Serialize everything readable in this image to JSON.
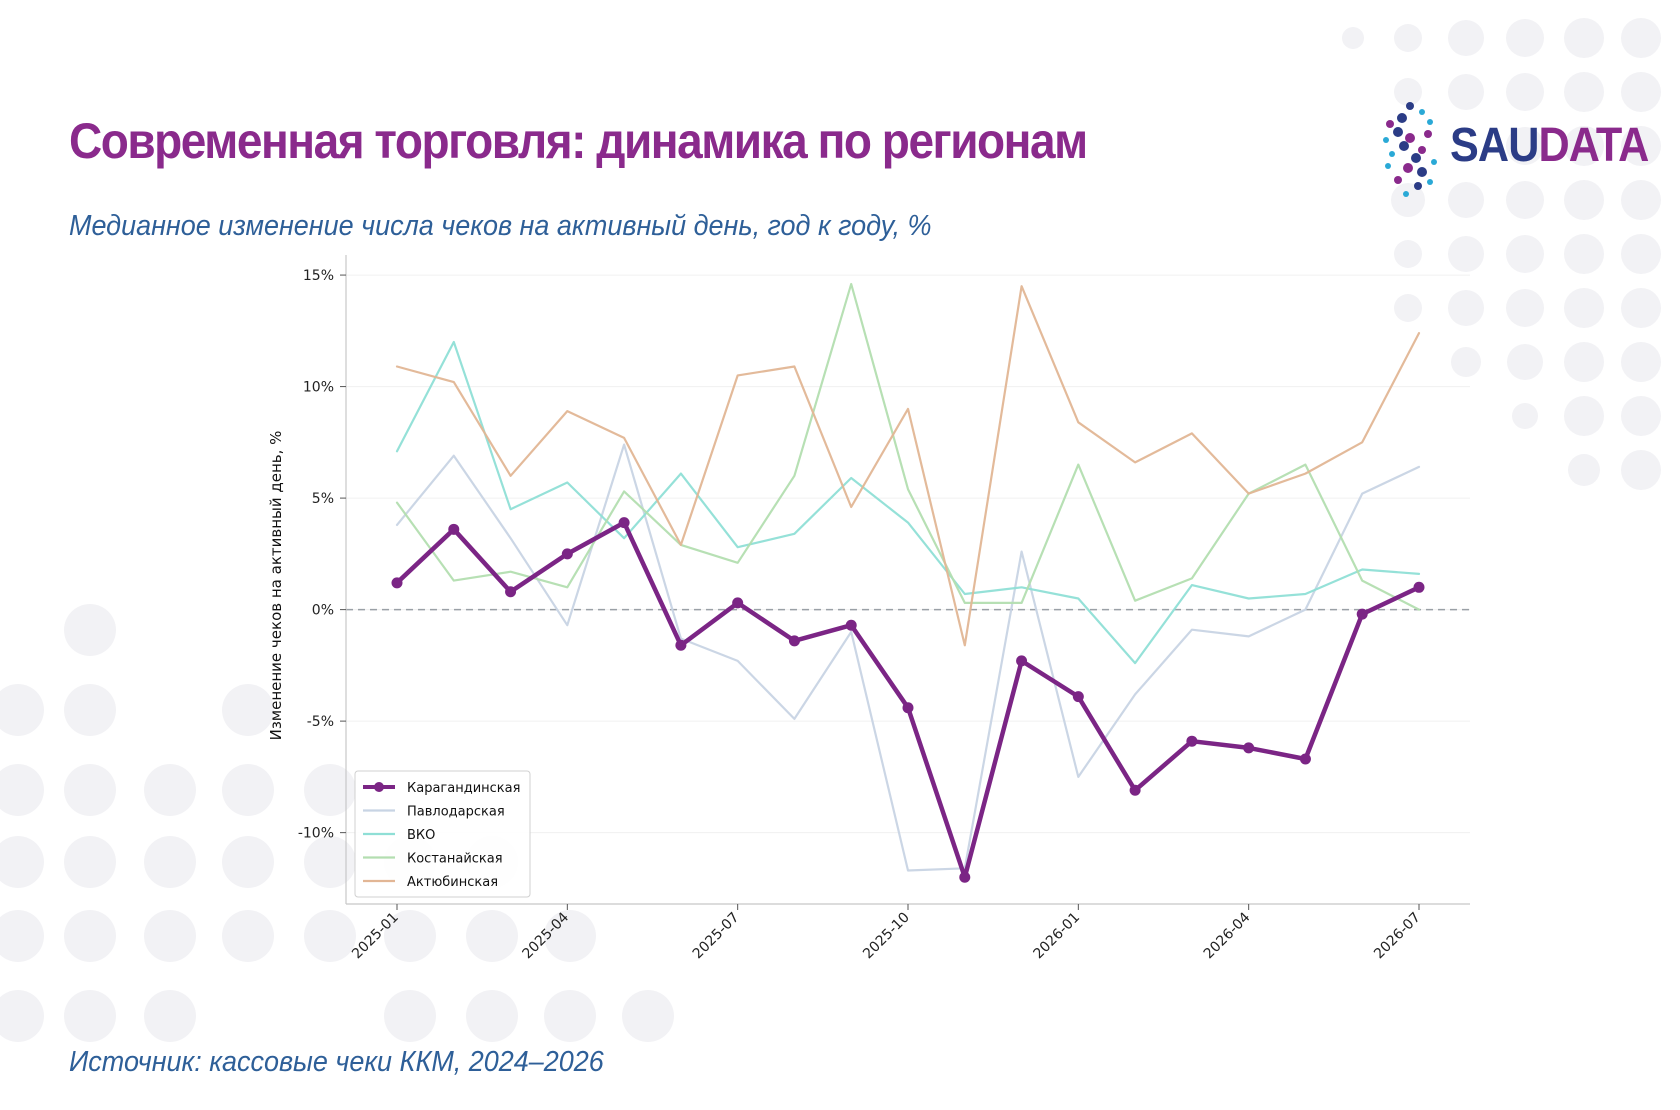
{
  "header": {
    "title": "Современная торговля: динамика по регионам",
    "subtitle": "Медианное изменение числа чеков на активный день, год к году, %"
  },
  "footer": {
    "source": "Источник: кассовые чеки ККМ, 2024–2026"
  },
  "logo": {
    "part1": "SAU",
    "part2": "DATA",
    "color1": "#2b3c86",
    "color2": "#8a2a8c"
  },
  "colors": {
    "title": "#8a2a8c",
    "subtitle": "#2e5f98",
    "dots": "#f2f2f5"
  },
  "chart_data": {
    "type": "line",
    "title": "",
    "xlabel": "",
    "ylabel": "Изменение чеков на активный день, %",
    "x": [
      "2025-01",
      "2025-02",
      "2025-03",
      "2025-04",
      "2025-05",
      "2025-06",
      "2025-07",
      "2025-08",
      "2025-09",
      "2025-10",
      "2025-11",
      "2025-12",
      "2026-01",
      "2026-02",
      "2026-03",
      "2026-04",
      "2026-05",
      "2026-06",
      "2026-07"
    ],
    "xticks": [
      "2025-01",
      "2025-04",
      "2025-07",
      "2025-10",
      "2026-01",
      "2026-04",
      "2026-07"
    ],
    "ylim": [
      -13.2,
      15.9
    ],
    "yticks": [
      -10,
      -5,
      0,
      5,
      10,
      15
    ],
    "ytick_labels": [
      "-10%",
      "-5%",
      "0%",
      "5%",
      "10%",
      "15%"
    ],
    "zero_line": true,
    "grid": "horizontal, light",
    "legend_position": "lower-left",
    "series": [
      {
        "name": "Карагандинская",
        "color": "#7b2585",
        "highlight": true,
        "values": [
          1.2,
          3.6,
          0.8,
          2.5,
          3.9,
          -1.6,
          0.3,
          -1.4,
          -0.7,
          -4.4,
          -12.0,
          -2.3,
          -3.9,
          -8.1,
          -5.9,
          -6.2,
          -6.7,
          -0.2,
          1.0
        ]
      },
      {
        "name": "Павлодарская",
        "color": "#c8d4e4",
        "highlight": false,
        "values": [
          3.8,
          6.9,
          3.2,
          -0.7,
          7.4,
          -1.3,
          -2.3,
          -4.9,
          -1.0,
          -11.7,
          -11.6,
          2.6,
          -7.5,
          -3.8,
          -0.9,
          -1.2,
          0.0,
          5.2,
          6.4
        ]
      },
      {
        "name": "ВКО",
        "color": "#8fdfd6",
        "highlight": false,
        "values": [
          7.1,
          12.0,
          4.5,
          5.7,
          3.2,
          6.1,
          2.8,
          3.4,
          5.9,
          3.9,
          0.7,
          1.0,
          0.5,
          -2.4,
          1.1,
          0.5,
          0.7,
          1.8,
          1.6
        ]
      },
      {
        "name": "Костанайская",
        "color": "#b3deb0",
        "highlight": false,
        "values": [
          4.8,
          1.3,
          1.7,
          1.0,
          5.3,
          2.9,
          2.1,
          6.0,
          14.6,
          5.4,
          0.3,
          0.3,
          6.5,
          0.4,
          1.4,
          5.2,
          6.5,
          1.3,
          0.0
        ]
      },
      {
        "name": "Актюбинская",
        "color": "#e2b695",
        "highlight": false,
        "values": [
          10.9,
          10.2,
          6.0,
          8.9,
          7.7,
          2.9,
          10.5,
          10.9,
          4.6,
          9.0,
          -1.6,
          14.5,
          8.4,
          6.6,
          7.9,
          5.2,
          6.1,
          7.5,
          12.4
        ]
      }
    ]
  }
}
